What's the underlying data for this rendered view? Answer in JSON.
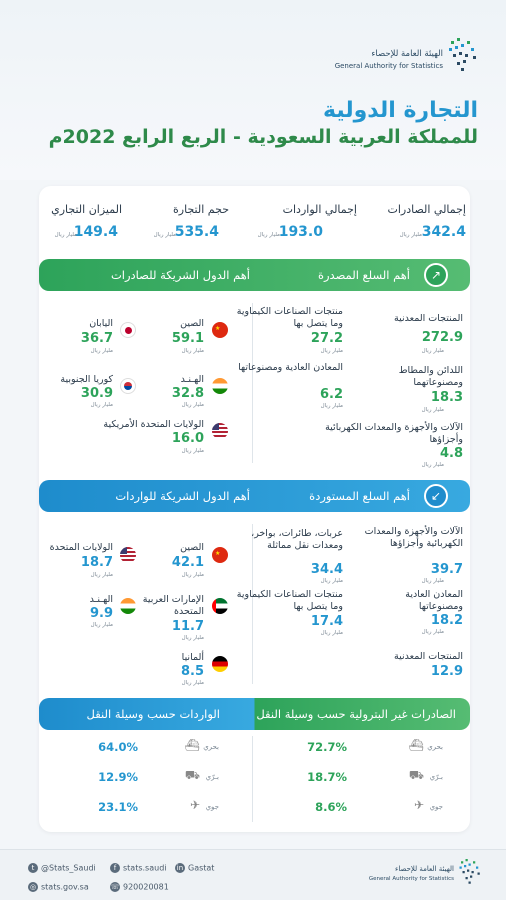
{
  "header": {
    "logo_ar": "الهيئة العامة للإحصاء",
    "logo_en": "General Authority for Statistics",
    "title_line1": "التجارة الدولية",
    "title_line2": "للمملكة العربية السعودية - الربع الرابع 2022م"
  },
  "summary": [
    {
      "label": "إجمالي الصادرات",
      "value": "342.4",
      "unit": "مليار ريال"
    },
    {
      "label": "إجمالي الواردات",
      "value": "193.0",
      "unit": "مليار ريال"
    },
    {
      "label": "حجم التجارة",
      "value": "535.4",
      "unit": "مليار ريال"
    },
    {
      "label": "الميزان التجاري",
      "value": "149.4",
      "unit": "مليار ريال"
    }
  ],
  "exports": {
    "goods_title": "أهم السلع المصدرة",
    "partners_title": "أهم الدول الشريكة للصادرات",
    "goods": [
      {
        "label": "المنتجات المعدنية",
        "value": "272.9",
        "unit": "مليار ريال"
      },
      {
        "label": "منتجات الصناعات الكيماوية وما يتصل بها",
        "value": "27.2",
        "unit": "مليار ريال"
      },
      {
        "label": "اللدائن والمطاط ومصنوعاتهما",
        "value": "18.3",
        "unit": "مليار ريال"
      },
      {
        "label": "المعادن العادية ومصنوعاتها",
        "value": "6.2",
        "unit": "مليار ريال"
      },
      {
        "label": "الآلات والأجهزة والمعدات الكهربائية وأجزاؤها",
        "value": "4.8",
        "unit": "مليار ريال"
      }
    ],
    "partners": [
      {
        "label": "الصين",
        "value": "59.1",
        "unit": "مليار ريال",
        "flag": "china"
      },
      {
        "label": "اليابان",
        "value": "36.7",
        "unit": "مليار ريال",
        "flag": "japan"
      },
      {
        "label": "الهـنـد",
        "value": "32.8",
        "unit": "مليار ريال",
        "flag": "india"
      },
      {
        "label": "كوريا الجنوبية",
        "value": "30.9",
        "unit": "مليار ريال",
        "flag": "korea"
      },
      {
        "label": "الولايات المتحدة الأمريكية",
        "value": "16.0",
        "unit": "مليار ريال",
        "flag": "usa"
      }
    ]
  },
  "imports": {
    "goods_title": "أهم السلع المستوردة",
    "partners_title": "أهم الدول الشريكة للواردات",
    "goods": [
      {
        "label": "الآلات والأجهزة والمعدات الكهربائية وأجزاؤها",
        "value": "39.7",
        "unit": "مليار ريال"
      },
      {
        "label": "عربات، طائرات، بواخر، ومعدات نقل مماثلة",
        "value": "34.4",
        "unit": "مليار ريال"
      },
      {
        "label": "المعادن العادية ومصنوعاتها",
        "value": "18.2",
        "unit": "مليار ريال"
      },
      {
        "label": "منتجات الصناعات الكيماوية وما يتصل بها",
        "value": "17.4",
        "unit": "مليار ريال"
      },
      {
        "label": "المنتجات المعدنية",
        "value": "12.9",
        "unit": "مليار ريال"
      }
    ],
    "partners": [
      {
        "label": "الصين",
        "value": "42.1",
        "unit": "مليار ريال",
        "flag": "china"
      },
      {
        "label": "الولايات المتحدة",
        "value": "18.7",
        "unit": "مليار ريال",
        "flag": "usa"
      },
      {
        "label": "الإمارات العربية المتحدة",
        "value": "11.7",
        "unit": "مليار ريال",
        "flag": "uae"
      },
      {
        "label": "الهـنـد",
        "value": "9.9",
        "unit": "مليار ريال",
        "flag": "india"
      },
      {
        "label": "ألمانيا",
        "value": "8.5",
        "unit": "مليار ريال",
        "flag": "germany"
      }
    ]
  },
  "transport": {
    "exports_title": "الصادرات غير البترولية حسب وسيلة النقل",
    "imports_title": "الواردات حسب وسيلة النقل",
    "exports": [
      {
        "mode": "بحري",
        "value": "72.7%",
        "icon": "ship-icon"
      },
      {
        "mode": "بـرّي",
        "value": "18.7%",
        "icon": "truck-icon"
      },
      {
        "mode": "جوي",
        "value": "8.6%",
        "icon": "plane-icon"
      }
    ],
    "imports": [
      {
        "mode": "بحري",
        "value": "64.0%",
        "icon": "ship-icon"
      },
      {
        "mode": "بـرّي",
        "value": "12.9%",
        "icon": "truck-icon"
      },
      {
        "mode": "جوي",
        "value": "23.1%",
        "icon": "plane-icon"
      }
    ]
  },
  "footer": {
    "twitter": "@Stats_Saudi",
    "facebook": "stats.saudi",
    "linkedin": "Gastat",
    "website": "stats.gov.sa",
    "phone": "920020081",
    "logo_ar": "الهيئة العامة للإحصاء",
    "logo_en": "General Authority for Statistics"
  },
  "colors": {
    "blue": "#2496cf",
    "green": "#2da35a"
  }
}
